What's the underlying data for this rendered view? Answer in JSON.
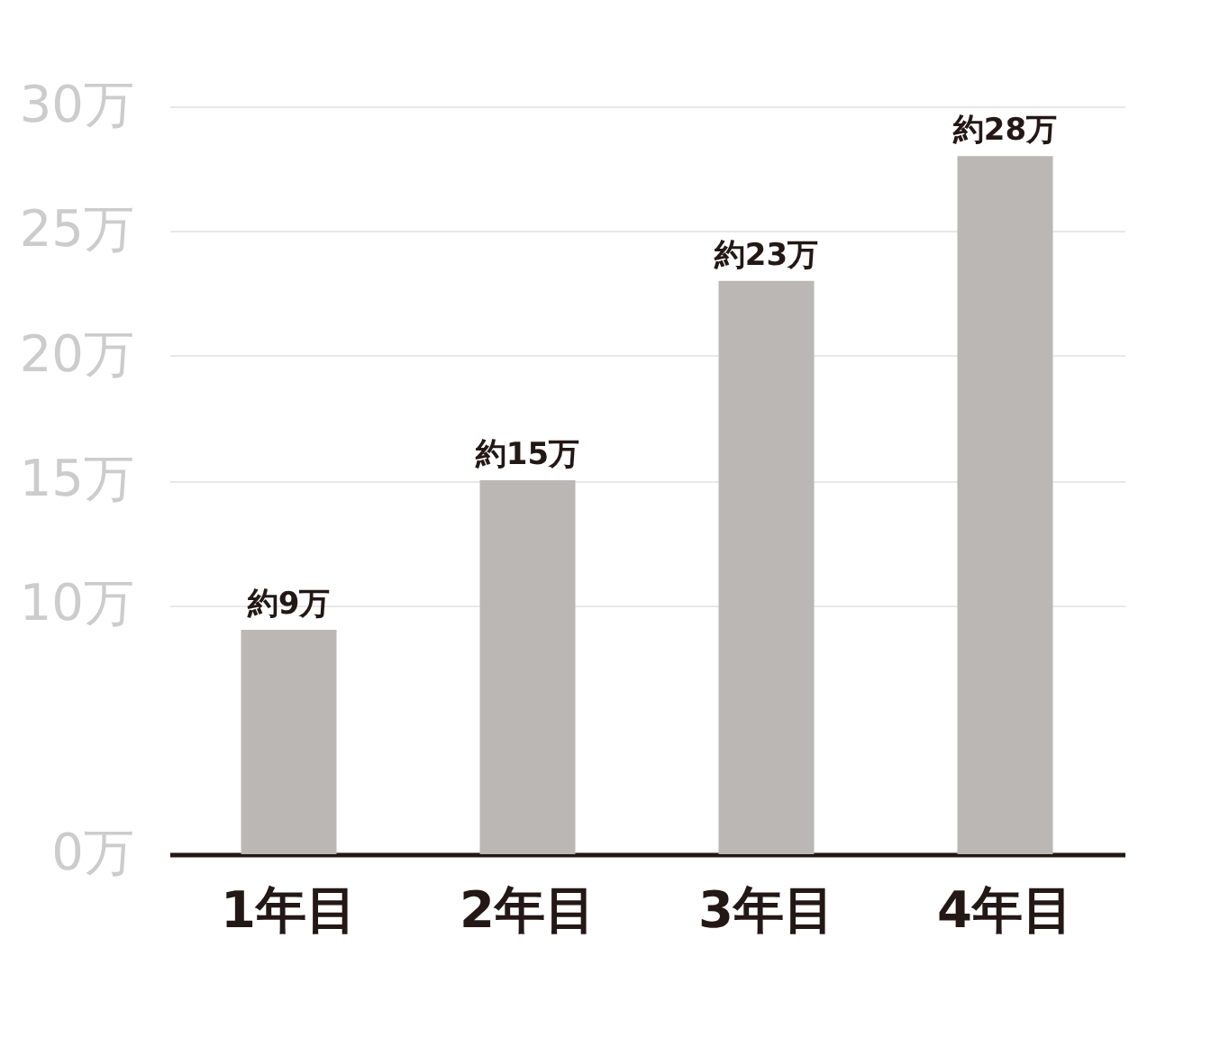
{
  "chart_data": {
    "type": "bar",
    "categories": [
      "1年目",
      "2年目",
      "3年目",
      "4年目"
    ],
    "values": [
      9,
      15,
      23,
      28
    ],
    "value_labels": [
      "約9万",
      "約15万",
      "約23万",
      "約28万"
    ],
    "color": "#bab7b5",
    "ylim": [
      0,
      30
    ],
    "yticks": [
      {
        "value": 0,
        "label": "0万"
      },
      {
        "value": 10,
        "label": "10万"
      },
      {
        "value": 15,
        "label": "15万"
      },
      {
        "value": 20,
        "label": "20万"
      },
      {
        "value": 25,
        "label": "25万"
      },
      {
        "value": 30,
        "label": "30万"
      }
    ],
    "grid": "y"
  }
}
